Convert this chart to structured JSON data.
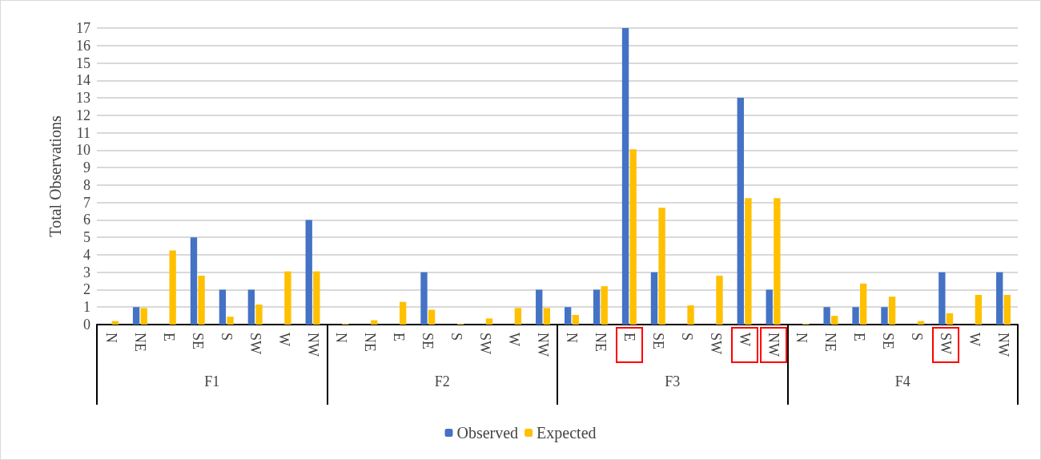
{
  "chart_data": {
    "type": "bar",
    "ylabel": "Total Observations",
    "categories": [
      "N",
      "NE",
      "E",
      "SE",
      "S",
      "SW",
      "W",
      "NW",
      "N",
      "NE",
      "E",
      "SE",
      "S",
      "SW",
      "W",
      "NW",
      "N",
      "NE",
      "E",
      "SE",
      "S",
      "SW",
      "W",
      "NW",
      "N",
      "NE",
      "E",
      "SE",
      "S",
      "SW",
      "W",
      "NW"
    ],
    "annotations": [
      "F1",
      "F2",
      "F3",
      "F4"
    ],
    "series": [
      {
        "name": "Observed",
        "color": "#4472c4",
        "values": [
          0,
          1,
          0,
          5,
          2,
          2,
          0,
          6,
          0,
          0,
          0,
          3,
          0,
          0,
          0,
          2,
          1,
          2,
          17,
          3,
          0,
          0,
          13,
          2,
          0,
          1,
          1,
          1,
          0,
          3,
          0,
          3
        ]
      },
      {
        "name": "Expected",
        "color": "#ffc000",
        "values": [
          0.2,
          0.95,
          4.25,
          2.8,
          0.45,
          1.15,
          3.05,
          3.05,
          0.05,
          0.25,
          1.3,
          0.85,
          0.05,
          0.35,
          0.95,
          0.95,
          0.55,
          2.2,
          10.05,
          6.7,
          1.1,
          2.8,
          7.25,
          7.25,
          0.05,
          0.5,
          2.35,
          1.6,
          0.2,
          0.65,
          1.7,
          1.7
        ]
      }
    ],
    "ylim": [
      0,
      17
    ],
    "yticks": [
      0,
      1,
      2,
      3,
      4,
      5,
      6,
      7,
      8,
      9,
      10,
      11,
      12,
      13,
      14,
      15,
      16,
      17
    ],
    "grid": "y",
    "legend": "bottom"
  }
}
